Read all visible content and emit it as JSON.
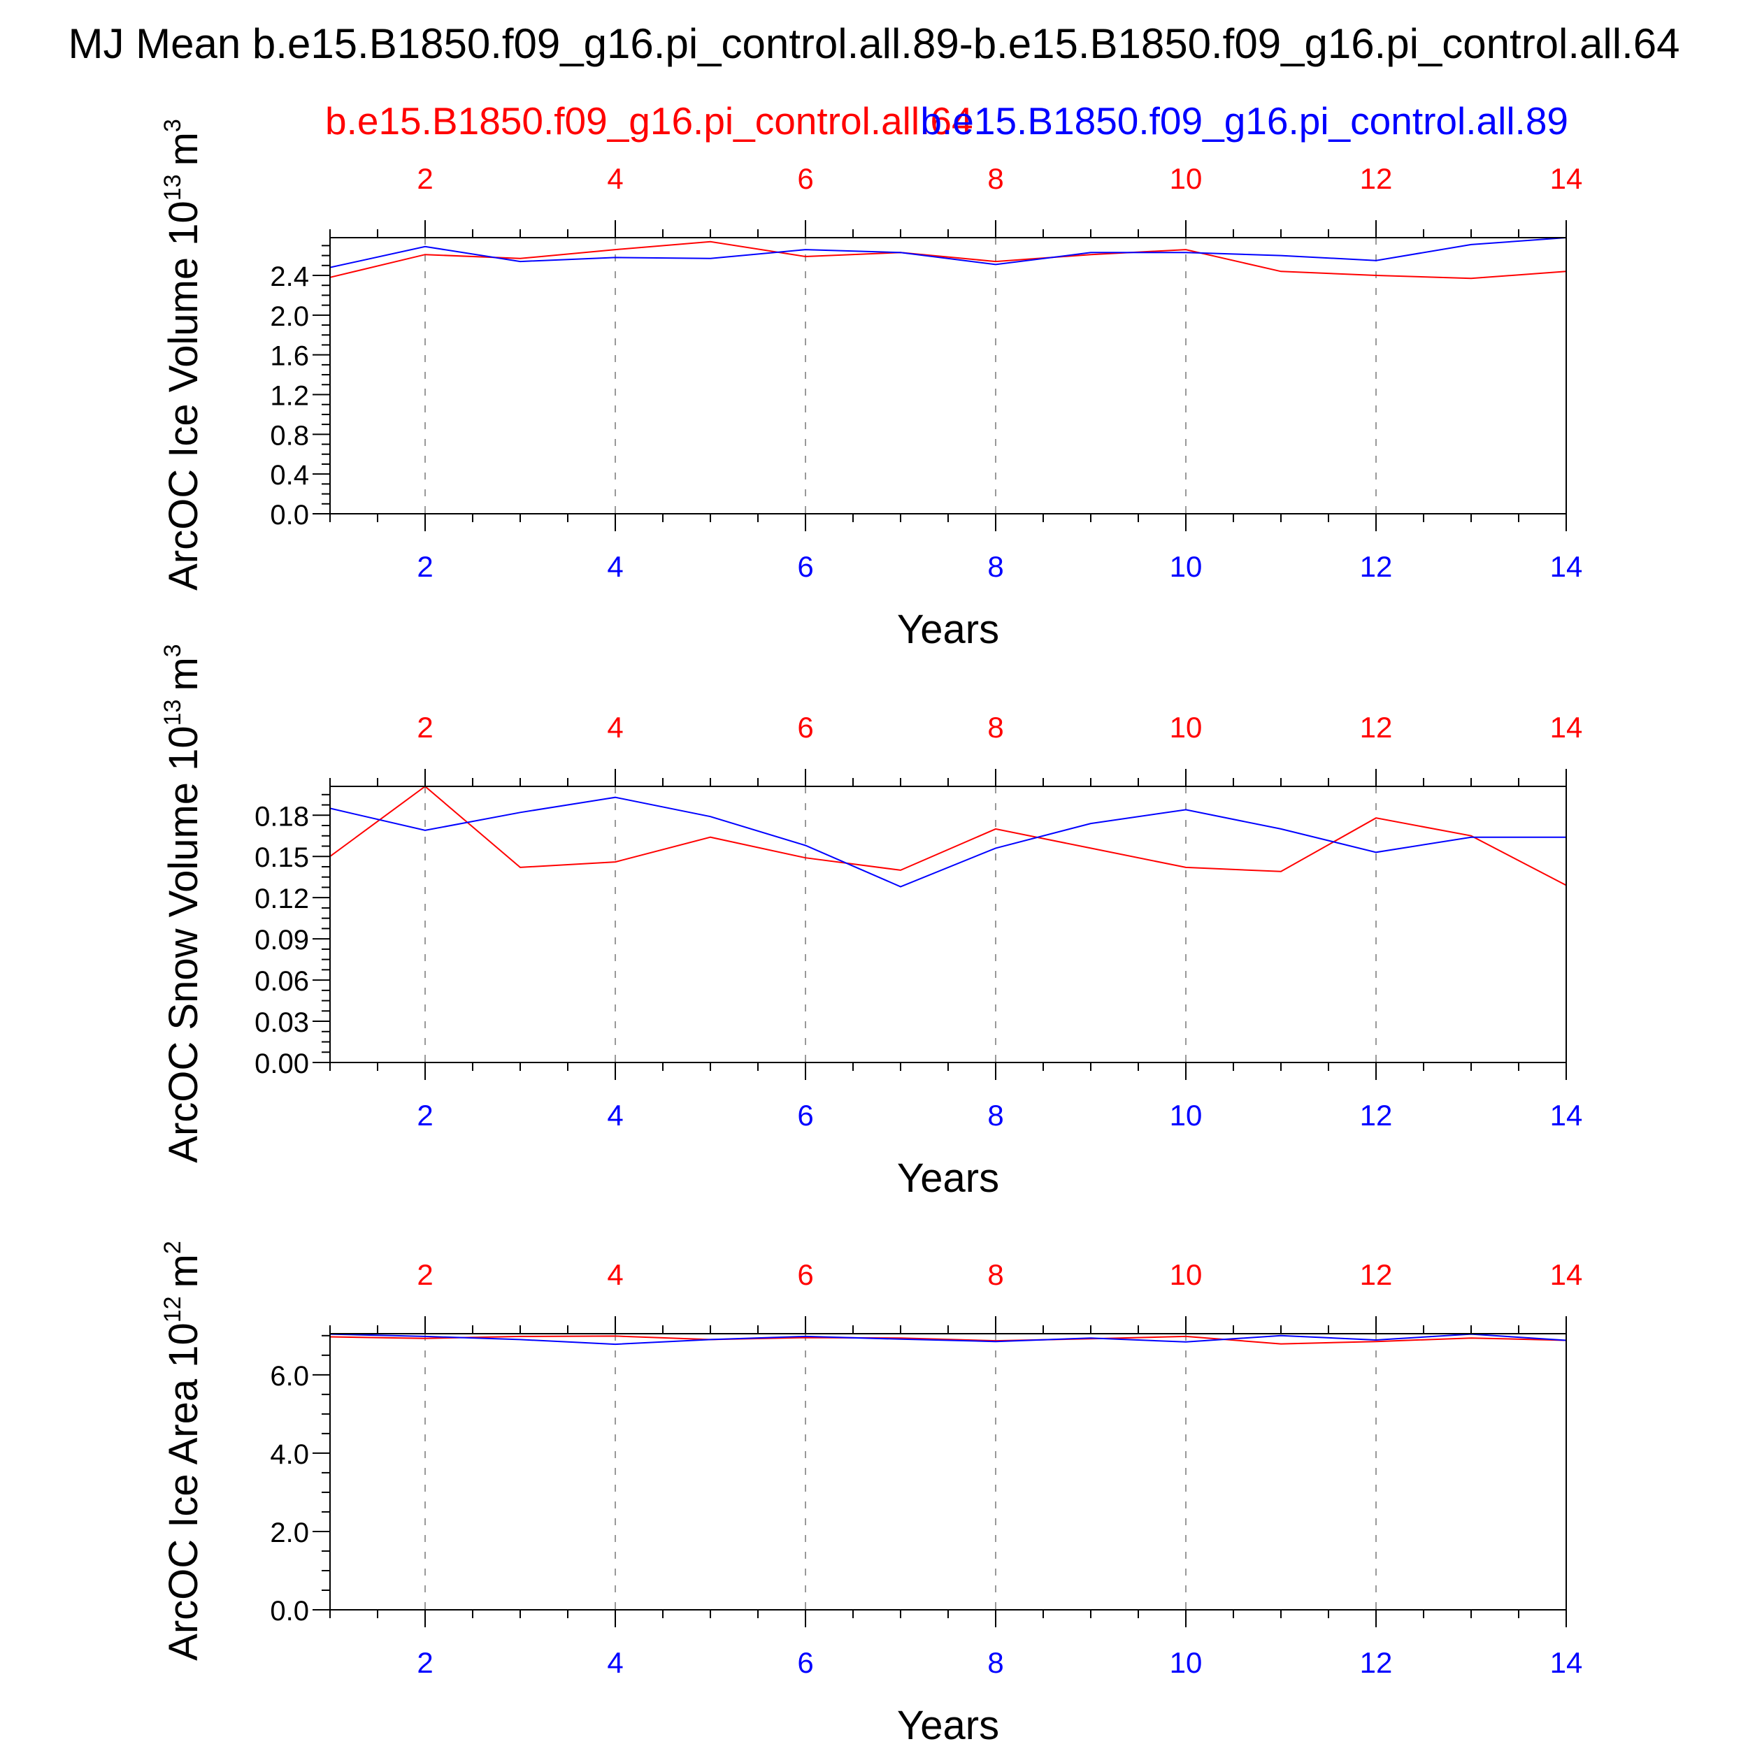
{
  "header": {
    "title": "MJ Mean b.e15.B1850.f09_g16.pi_control.all.89-b.e15.B1850.f09_g16.pi_control.all.64",
    "legend_top_left": "b.e15.B1850.f09_g16.pi_control.all.64",
    "legend_top_right": "b.e15.B1850.f09_g16.pi_control.all.89"
  },
  "colors": {
    "top_axis": "#ff0000",
    "bottom_axis": "#0000ff",
    "series_red": "#ff0000",
    "series_blue": "#0000ff",
    "frame": "#000000",
    "grid": "#999999"
  },
  "chart_data": [
    {
      "type": "line",
      "ylabel": "ArcOC Ice Volume 10",
      "ylabel_exp": "13",
      "ylabel_unit": "m",
      "ylabel_unit_exp": "3",
      "xlabel": "Years",
      "xlim": [
        1,
        14
      ],
      "ylim": [
        0.0,
        2.78
      ],
      "yticks": [
        "0.0",
        "0.4",
        "0.8",
        "1.2",
        "1.6",
        "2.0",
        "2.4"
      ],
      "xticks": [
        "2",
        "4",
        "6",
        "8",
        "10",
        "12",
        "14"
      ],
      "grid": "vertical dashed at major x ticks",
      "x": [
        1,
        2,
        3,
        4,
        5,
        6,
        7,
        8,
        9,
        10,
        11,
        12,
        13,
        14
      ],
      "series": [
        {
          "color": "#ff0000",
          "values": [
            2.38,
            2.61,
            2.57,
            2.66,
            2.74,
            2.59,
            2.63,
            2.54,
            2.61,
            2.66,
            2.44,
            2.4,
            2.37,
            2.44
          ]
        },
        {
          "color": "#0000ff",
          "values": [
            2.48,
            2.69,
            2.54,
            2.58,
            2.57,
            2.66,
            2.63,
            2.51,
            2.63,
            2.63,
            2.6,
            2.55,
            2.71,
            2.78
          ]
        }
      ]
    },
    {
      "type": "line",
      "ylabel": "ArcOC Snow Volume 10",
      "ylabel_exp": "13",
      "ylabel_unit": "m",
      "ylabel_unit_exp": "3",
      "xlabel": "Years",
      "xlim": [
        1,
        14
      ],
      "ylim": [
        0.0,
        0.201
      ],
      "yticks": [
        "0.00",
        "0.03",
        "0.06",
        "0.09",
        "0.12",
        "0.15",
        "0.18"
      ],
      "xticks": [
        "2",
        "4",
        "6",
        "8",
        "10",
        "12",
        "14"
      ],
      "grid": "vertical dashed at major x ticks",
      "x": [
        1,
        2,
        3,
        4,
        5,
        6,
        7,
        8,
        9,
        10,
        11,
        12,
        13,
        14
      ],
      "series": [
        {
          "color": "#ff0000",
          "values": [
            0.15,
            0.201,
            0.142,
            0.146,
            0.164,
            0.149,
            0.14,
            0.17,
            0.156,
            0.142,
            0.139,
            0.178,
            0.165,
            0.129
          ]
        },
        {
          "color": "#0000ff",
          "values": [
            0.185,
            0.169,
            0.182,
            0.193,
            0.179,
            0.158,
            0.128,
            0.156,
            0.174,
            0.184,
            0.17,
            0.153,
            0.164,
            0.164
          ]
        }
      ]
    },
    {
      "type": "line",
      "ylabel": "ArcOC Ice Area 10",
      "ylabel_exp": "12",
      "ylabel_unit": "m",
      "ylabel_unit_exp": "2",
      "xlabel": "Years",
      "xlim": [
        1,
        14
      ],
      "ylim": [
        0.0,
        7.05
      ],
      "yticks": [
        "0.0",
        "2.0",
        "4.0",
        "6.0"
      ],
      "xticks": [
        "2",
        "4",
        "6",
        "8",
        "10",
        "12",
        "14"
      ],
      "grid": "vertical dashed at major x ticks",
      "x": [
        1,
        2,
        3,
        4,
        5,
        6,
        7,
        8,
        9,
        10,
        11,
        12,
        13,
        14
      ],
      "series": [
        {
          "color": "#ff0000",
          "values": [
            6.97,
            6.93,
            6.98,
            6.99,
            6.9,
            6.95,
            6.94,
            6.87,
            6.92,
            6.98,
            6.79,
            6.85,
            6.94,
            6.88
          ]
        },
        {
          "color": "#0000ff",
          "values": [
            7.04,
            6.98,
            6.9,
            6.78,
            6.9,
            6.98,
            6.91,
            6.85,
            6.94,
            6.84,
            7.0,
            6.89,
            7.04,
            6.88
          ]
        }
      ]
    }
  ]
}
